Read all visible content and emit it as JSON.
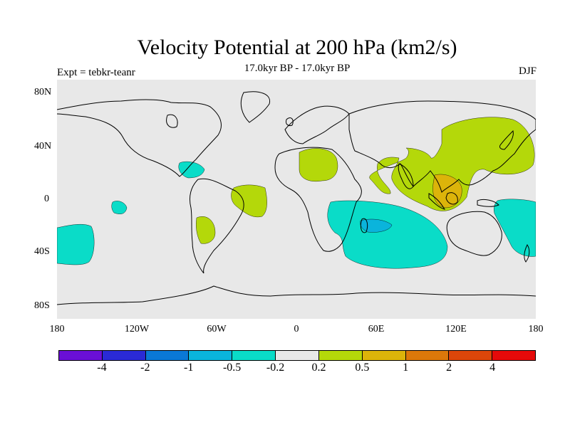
{
  "title": "Velocity Potential at 200 hPa (km2/s)",
  "subtitle": "17.0kyr BP - 17.0kyr BP",
  "experiment": "Expt = tebkr-teanr",
  "season": "DJF",
  "lat_labels": [
    "80N",
    "40N",
    "0",
    "40S",
    "80S"
  ],
  "lon_labels": [
    "180",
    "120W",
    "60W",
    "0",
    "60E",
    "120E",
    "180"
  ],
  "colorbar": {
    "colors": [
      "#6a0fd6",
      "#2a2ad6",
      "#0a78d6",
      "#0ab4dc",
      "#0adcc8",
      "#e8e8e8",
      "#b4d80a",
      "#dcb40a",
      "#dc780a",
      "#dc460a",
      "#e60a0a"
    ],
    "labels": [
      "-4",
      "-2",
      "-1",
      "-0.5",
      "-0.2",
      "0.2",
      "0.5",
      "1",
      "2",
      "4"
    ]
  },
  "colors": {
    "background": "#e8e8e8",
    "coast": "#000000"
  }
}
